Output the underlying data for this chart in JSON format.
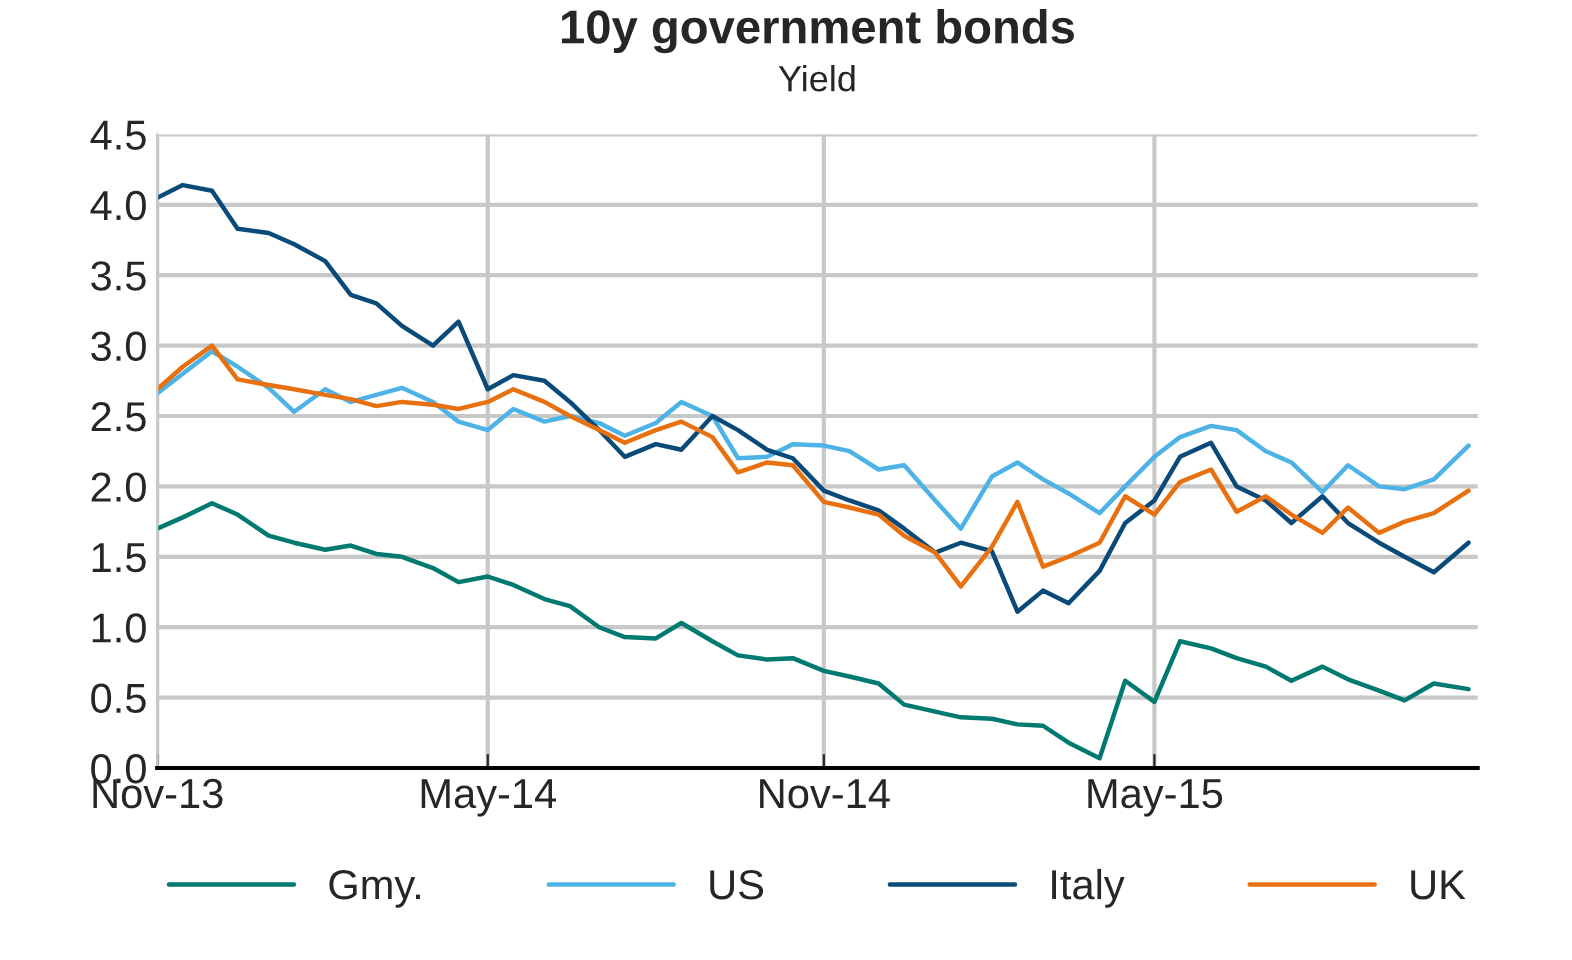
{
  "chart_data": {
    "type": "line",
    "title": "10y government bonds",
    "subtitle": "Yield",
    "x": [
      "2013-11-01",
      "2013-11-15",
      "2013-12-01",
      "2013-12-15",
      "2014-01-01",
      "2014-01-15",
      "2014-02-01",
      "2014-02-15",
      "2014-03-01",
      "2014-03-15",
      "2014-04-01",
      "2014-04-15",
      "2014-05-01",
      "2014-05-15",
      "2014-06-01",
      "2014-06-15",
      "2014-07-01",
      "2014-07-15",
      "2014-08-01",
      "2014-08-15",
      "2014-09-01",
      "2014-09-15",
      "2014-10-01",
      "2014-10-15",
      "2014-11-01",
      "2014-11-15",
      "2014-12-01",
      "2014-12-15",
      "2015-01-01",
      "2015-01-15",
      "2015-02-01",
      "2015-02-15",
      "2015-03-01",
      "2015-03-15",
      "2015-04-01",
      "2015-04-15",
      "2015-05-01",
      "2015-05-15",
      "2015-06-01",
      "2015-06-15",
      "2015-07-01",
      "2015-07-15",
      "2015-08-01",
      "2015-08-15",
      "2015-09-01",
      "2015-09-15",
      "2015-10-01",
      "2015-10-20"
    ],
    "series": [
      {
        "name": "Gmy.",
        "color": "#007a70",
        "values": [
          1.7,
          1.78,
          1.88,
          1.8,
          1.65,
          1.6,
          1.55,
          1.58,
          1.52,
          1.5,
          1.42,
          1.32,
          1.36,
          1.3,
          1.2,
          1.15,
          1.0,
          0.93,
          0.92,
          1.03,
          0.9,
          0.8,
          0.77,
          0.78,
          0.69,
          0.65,
          0.6,
          0.45,
          0.4,
          0.36,
          0.35,
          0.31,
          0.3,
          0.18,
          0.07,
          0.62,
          0.47,
          0.9,
          0.85,
          0.78,
          0.72,
          0.62,
          0.72,
          0.63,
          0.55,
          0.48,
          0.6,
          0.56
        ]
      },
      {
        "name": "US",
        "color": "#4db3e6",
        "values": [
          2.66,
          2.8,
          2.96,
          2.85,
          2.7,
          2.53,
          2.69,
          2.6,
          2.65,
          2.7,
          2.6,
          2.46,
          2.4,
          2.55,
          2.46,
          2.5,
          2.45,
          2.36,
          2.45,
          2.6,
          2.5,
          2.2,
          2.21,
          2.3,
          2.29,
          2.25,
          2.12,
          2.15,
          1.9,
          1.7,
          2.07,
          2.17,
          2.05,
          1.95,
          1.81,
          2.0,
          2.21,
          2.35,
          2.43,
          2.4,
          2.25,
          2.17,
          1.96,
          2.15,
          2.0,
          1.98,
          2.05,
          2.29
        ]
      },
      {
        "name": "Italy",
        "color": "#0a4a78",
        "values": [
          4.05,
          4.14,
          4.1,
          3.83,
          3.8,
          3.72,
          3.6,
          3.36,
          3.3,
          3.14,
          3.0,
          3.17,
          2.69,
          2.79,
          2.75,
          2.6,
          2.4,
          2.21,
          2.3,
          2.26,
          2.5,
          2.4,
          2.26,
          2.2,
          1.97,
          1.9,
          1.83,
          1.7,
          1.53,
          1.6,
          1.54,
          1.11,
          1.26,
          1.17,
          1.4,
          1.74,
          1.9,
          2.21,
          2.31,
          2.0,
          1.9,
          1.74,
          1.93,
          1.74,
          1.6,
          1.5,
          1.39,
          1.6
        ]
      },
      {
        "name": "UK",
        "color": "#e8700f",
        "values": [
          2.69,
          2.85,
          3.0,
          2.76,
          2.72,
          2.69,
          2.65,
          2.62,
          2.57,
          2.6,
          2.58,
          2.55,
          2.6,
          2.69,
          2.6,
          2.5,
          2.4,
          2.31,
          2.4,
          2.46,
          2.35,
          2.1,
          2.17,
          2.15,
          1.89,
          1.85,
          1.8,
          1.65,
          1.53,
          1.29,
          1.57,
          1.89,
          1.43,
          1.5,
          1.6,
          1.93,
          1.8,
          2.03,
          2.12,
          1.82,
          1.93,
          1.8,
          1.67,
          1.85,
          1.67,
          1.75,
          1.81,
          1.97
        ]
      }
    ],
    "xlim": [
      "2013-11-01",
      "2015-10-25"
    ],
    "xticks": [
      {
        "value": "2013-11-01",
        "label": "Nov-13"
      },
      {
        "value": "2014-05-01",
        "label": "May-14"
      },
      {
        "value": "2014-11-01",
        "label": "Nov-14"
      },
      {
        "value": "2015-05-01",
        "label": "May-15"
      }
    ],
    "ylim": [
      0,
      4.5
    ],
    "yticks": [
      {
        "value": 0,
        "label": "0.0"
      },
      {
        "value": 0.5,
        "label": "0.5"
      },
      {
        "value": 1,
        "label": "1.0"
      },
      {
        "value": 1.5,
        "label": "1.5"
      },
      {
        "value": 2,
        "label": "2.0"
      },
      {
        "value": 2.5,
        "label": "2.5"
      },
      {
        "value": 3,
        "label": "3.0"
      },
      {
        "value": 3.5,
        "label": "3.5"
      },
      {
        "value": 4,
        "label": "4.0"
      },
      {
        "value": 4.5,
        "label": "4.5"
      }
    ],
    "grid": true,
    "legend": "bottom",
    "marker": "none",
    "line_style": "solid"
  }
}
